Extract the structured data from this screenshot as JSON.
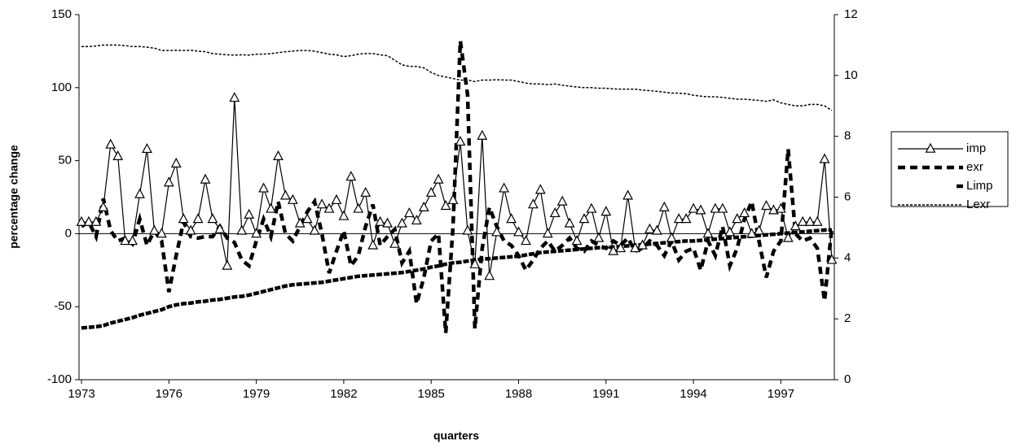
{
  "chart_data": {
    "type": "line",
    "x_label": "quarters",
    "y_label": "percentage change",
    "categories": [
      "1973",
      null,
      null,
      null,
      null,
      null,
      null,
      null,
      null,
      null,
      null,
      null,
      "1976",
      null,
      null,
      null,
      null,
      null,
      null,
      null,
      null,
      null,
      null,
      null,
      "1979",
      null,
      null,
      null,
      null,
      null,
      null,
      null,
      null,
      null,
      null,
      null,
      "1982",
      null,
      null,
      null,
      null,
      null,
      null,
      null,
      null,
      null,
      null,
      null,
      "1985",
      null,
      null,
      null,
      null,
      null,
      null,
      null,
      null,
      null,
      null,
      null,
      "1988",
      null,
      null,
      null,
      null,
      null,
      null,
      null,
      null,
      null,
      null,
      null,
      "1991",
      null,
      null,
      null,
      null,
      null,
      null,
      null,
      null,
      null,
      null,
      null,
      "1994",
      null,
      null,
      null,
      null,
      null,
      null,
      null,
      null,
      null,
      null,
      null,
      "1997",
      null,
      null,
      null,
      null,
      null,
      null,
      null
    ],
    "ylim": [
      -100,
      150
    ],
    "yticks": [
      -100,
      -50,
      0,
      50,
      100,
      150
    ],
    "y2lim": [
      0,
      12
    ],
    "y2ticks": [
      0,
      2,
      4,
      6,
      8,
      10,
      12
    ],
    "grid": false,
    "legend": "right",
    "series": [
      {
        "name": "imp",
        "color": "#000000",
        "marker": "triangle",
        "values": [
          8,
          8,
          8,
          18,
          61,
          53,
          -5,
          -5,
          27,
          58,
          2,
          0,
          35,
          48,
          10,
          2,
          10,
          37,
          10,
          3,
          -22,
          93,
          2,
          13,
          0,
          31,
          17,
          53,
          26,
          23,
          7,
          10,
          2,
          20,
          17,
          23,
          12,
          39,
          17,
          28,
          -8,
          8,
          7,
          -7,
          7,
          14,
          9,
          18,
          28,
          37,
          19,
          23,
          63,
          2,
          -21,
          67,
          -29,
          1,
          31,
          10,
          1,
          -5,
          20,
          30,
          0,
          14,
          22,
          7,
          -5,
          10,
          17,
          -3,
          15,
          -12,
          -10,
          26,
          -10,
          -8,
          3,
          2,
          18,
          -3,
          10,
          10,
          17,
          16,
          0,
          17,
          17,
          1,
          10,
          14,
          0,
          2,
          19,
          16,
          17,
          -3,
          5,
          8,
          8,
          8,
          51,
          -18
        ]
      },
      {
        "name": "exr",
        "color": "#000000",
        "values": [
          5,
          8,
          -2,
          24,
          2,
          -5,
          -3,
          -7,
          10,
          -8,
          2,
          -5,
          -40,
          -15,
          8,
          -2,
          -3,
          -2,
          -2,
          5,
          -3,
          -6,
          -18,
          -22,
          -5,
          10,
          -2,
          22,
          0,
          -5,
          5,
          15,
          22,
          0,
          -27,
          -12,
          2,
          -22,
          -15,
          5,
          20,
          -8,
          -2,
          3,
          -20,
          -12,
          -48,
          -30,
          -5,
          0,
          -68,
          5,
          132,
          95,
          -65,
          -10,
          18,
          5,
          -5,
          -8,
          -15,
          -25,
          -18,
          -10,
          -5,
          -12,
          -8,
          -3,
          -10,
          -12,
          -5,
          -8,
          -10,
          -5,
          -8,
          -3,
          -12,
          -10,
          -5,
          -8,
          -15,
          -5,
          -18,
          -12,
          -10,
          -25,
          -5,
          -15,
          5,
          -22,
          -10,
          10,
          22,
          -5,
          -30,
          -12,
          -5,
          58,
          0,
          -5,
          -3,
          -10,
          -46,
          5
        ]
      },
      {
        "name": "Limp",
        "color": "#000000",
        "axis": "y2",
        "values": [
          1.7,
          1.72,
          1.74,
          1.78,
          1.86,
          1.92,
          1.98,
          2.04,
          2.12,
          2.18,
          2.24,
          2.3,
          2.4,
          2.46,
          2.5,
          2.52,
          2.56,
          2.58,
          2.62,
          2.64,
          2.68,
          2.72,
          2.74,
          2.78,
          2.84,
          2.9,
          2.96,
          3.02,
          3.08,
          3.12,
          3.14,
          3.16,
          3.18,
          3.2,
          3.24,
          3.28,
          3.32,
          3.36,
          3.4,
          3.42,
          3.44,
          3.46,
          3.48,
          3.5,
          3.52,
          3.56,
          3.6,
          3.64,
          3.7,
          3.74,
          3.8,
          3.84,
          3.86,
          3.9,
          3.94,
          3.96,
          3.98,
          4.0,
          4.02,
          4.04,
          4.06,
          4.1,
          4.14,
          4.18,
          4.2,
          4.22,
          4.24,
          4.26,
          4.28,
          4.3,
          4.32,
          4.34,
          4.34,
          4.36,
          4.38,
          4.4,
          4.42,
          4.44,
          4.46,
          4.48,
          4.5,
          4.52,
          4.54,
          4.56,
          4.56,
          4.58,
          4.6,
          4.62,
          4.64,
          4.66,
          4.68,
          4.7,
          4.72,
          4.74,
          4.76,
          4.78,
          4.8,
          4.82,
          4.84,
          4.86,
          4.88,
          4.9,
          4.92,
          4.92
        ]
      },
      {
        "name": "Lexr",
        "color": "#000000",
        "axis": "y2",
        "values": [
          10.95,
          10.95,
          10.97,
          11.0,
          11.0,
          11.0,
          10.98,
          10.95,
          10.95,
          10.93,
          10.9,
          10.82,
          10.82,
          10.83,
          10.82,
          10.83,
          10.8,
          10.78,
          10.72,
          10.7,
          10.68,
          10.67,
          10.68,
          10.67,
          10.7,
          10.7,
          10.72,
          10.75,
          10.78,
          10.8,
          10.82,
          10.82,
          10.8,
          10.75,
          10.7,
          10.68,
          10.62,
          10.65,
          10.7,
          10.72,
          10.72,
          10.68,
          10.65,
          10.5,
          10.35,
          10.3,
          10.3,
          10.25,
          10.1,
          10.0,
          9.95,
          9.9,
          9.85,
          9.85,
          9.8,
          9.85,
          9.85,
          9.86,
          9.85,
          9.85,
          9.8,
          9.75,
          9.72,
          9.72,
          9.7,
          9.72,
          9.68,
          9.65,
          9.62,
          9.6,
          9.6,
          9.58,
          9.58,
          9.56,
          9.55,
          9.55,
          9.55,
          9.52,
          9.5,
          9.48,
          9.45,
          9.42,
          9.42,
          9.4,
          9.35,
          9.32,
          9.3,
          9.3,
          9.28,
          9.25,
          9.22,
          9.22,
          9.2,
          9.18,
          9.15,
          9.2,
          9.1,
          9.05,
          9.0,
          9.0,
          9.05,
          9.05,
          9.0,
          8.85
        ]
      }
    ]
  }
}
